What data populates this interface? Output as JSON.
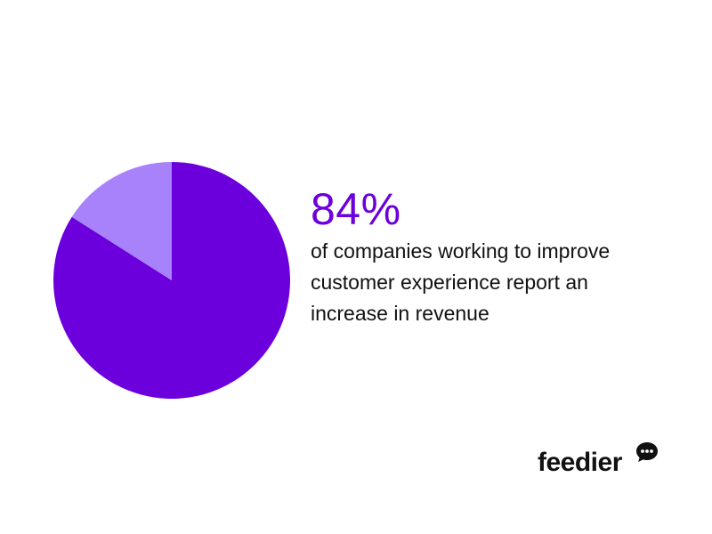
{
  "chart_data": {
    "type": "pie",
    "slices": [
      {
        "value": 84,
        "color": "#6c00dc"
      },
      {
        "value": 16,
        "color": "#a882fb"
      }
    ]
  },
  "stat": {
    "value": "84%",
    "caption_lines": [
      "of companies working to improve",
      "customer experience report an",
      "increase in revenue"
    ]
  },
  "brand": {
    "name": "feedier",
    "icon": "speech-bubble-icon"
  },
  "colors": {
    "accent": "#6c00dc",
    "accent_light": "#a882fb",
    "text": "#111111"
  }
}
